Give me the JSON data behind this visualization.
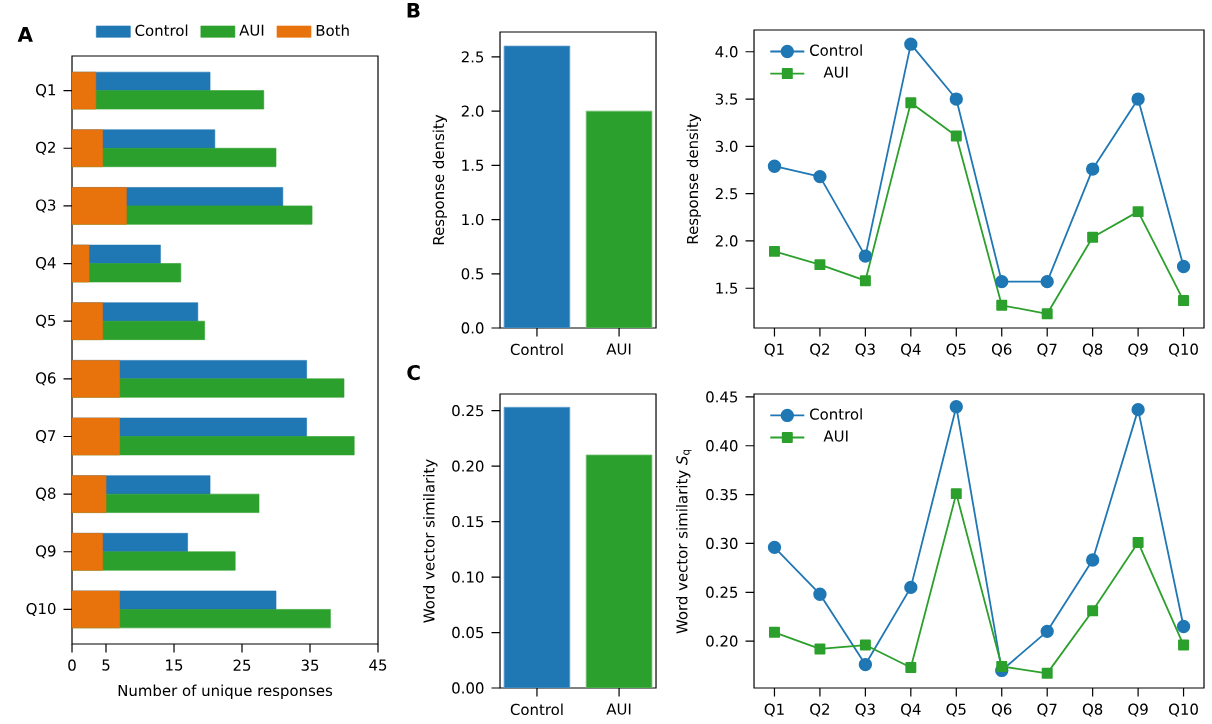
{
  "chart_data": [
    {
      "type": "bar",
      "orientation": "horizontal",
      "title": "A",
      "xlabel": "Number of unique responses",
      "categories": [
        "Q1",
        "Q2",
        "Q3",
        "Q4",
        "Q5",
        "Q6",
        "Q7",
        "Q8",
        "Q9",
        "Q10"
      ],
      "xlim": [
        0,
        45
      ],
      "xticks": [
        0,
        5,
        15,
        25,
        35,
        45
      ],
      "legend": "top",
      "series": [
        {
          "name": "Control",
          "color": "#1f77b4",
          "values": [
            20.3,
            21,
            31,
            13,
            18.5,
            34.5,
            34.5,
            20.3,
            17,
            30
          ]
        },
        {
          "name": "AUI",
          "color": "#2ca02c",
          "values": [
            28.2,
            30,
            35.3,
            16,
            19.5,
            40,
            41.5,
            27.5,
            24,
            38
          ]
        },
        {
          "name": "Both",
          "color": "#e8720c",
          "values": [
            3.5,
            4.5,
            8,
            2.5,
            4.5,
            7,
            7,
            5,
            4.5,
            7
          ]
        }
      ]
    },
    {
      "type": "bar",
      "title": "B",
      "ylabel": "Response density",
      "categories": [
        "Control",
        "AUI"
      ],
      "values": [
        2.6,
        2.0
      ],
      "colors": [
        "#1f77b4",
        "#2ca02c"
      ],
      "ylim": [
        0,
        2.73
      ],
      "yticks": [
        {
          "value": 0,
          "label": "0.0"
        },
        0.5,
        {
          "value": 1,
          "label": "1.0"
        },
        1.5,
        {
          "value": 2,
          "label": "2.0"
        },
        2.5
      ]
    },
    {
      "type": "line",
      "ylabel": "Response density",
      "categories": [
        "Q1",
        "Q2",
        "Q3",
        "Q4",
        "Q5",
        "Q6",
        "Q7",
        "Q8",
        "Q9",
        "Q10"
      ],
      "ylim": [
        1.08,
        4.23
      ],
      "yticks": [
        1.5,
        {
          "value": 2,
          "label": "2.0"
        },
        2.5,
        {
          "value": 3,
          "label": "3.0"
        },
        3.5,
        {
          "value": 4,
          "label": "4.0"
        }
      ],
      "legend": "top left",
      "series": [
        {
          "name": "Control",
          "color": "#1f77b4",
          "marker": "circle",
          "values": [
            2.79,
            2.68,
            1.84,
            4.08,
            3.5,
            1.57,
            1.57,
            2.76,
            3.5,
            1.73
          ]
        },
        {
          "name": "AUI",
          "color": "#2ca02c",
          "marker": "square",
          "values": [
            1.89,
            1.75,
            1.58,
            3.46,
            3.11,
            1.32,
            1.23,
            2.04,
            2.31,
            1.37
          ]
        }
      ]
    },
    {
      "type": "bar",
      "title": "C",
      "ylabel": "Word vector similarity",
      "categories": [
        "Control",
        "AUI"
      ],
      "values": [
        0.253,
        0.21
      ],
      "colors": [
        "#1f77b4",
        "#2ca02c"
      ],
      "ylim": [
        0,
        0.265
      ],
      "yticks": [
        {
          "value": 0,
          "label": "0.00"
        },
        0.05,
        {
          "value": 0.1,
          "label": "0.10"
        },
        0.15,
        {
          "value": 0.2,
          "label": "0.20"
        },
        0.25
      ]
    },
    {
      "type": "line",
      "ylabel": "Word vector similarity *S*$_{q}$",
      "categories": [
        "Q1",
        "Q2",
        "Q3",
        "Q4",
        "Q5",
        "Q6",
        "Q7",
        "Q8",
        "Q9",
        "Q10"
      ],
      "ylim": [
        0.152,
        0.453
      ],
      "yticks": [
        {
          "value": 0.2,
          "label": "0.20"
        },
        0.25,
        {
          "value": 0.3,
          "label": "0.30"
        },
        0.35,
        {
          "value": 0.4,
          "label": "0.40"
        },
        0.45
      ],
      "legend": "top left",
      "series": [
        {
          "name": "Control",
          "color": "#1f77b4",
          "marker": "circle",
          "values": [
            0.296,
            0.248,
            0.176,
            0.255,
            0.44,
            0.17,
            0.21,
            0.283,
            0.437,
            0.215
          ]
        },
        {
          "name": "AUI",
          "color": "#2ca02c",
          "marker": "square",
          "values": [
            0.209,
            0.192,
            0.196,
            0.173,
            0.351,
            0.174,
            0.167,
            0.231,
            0.301,
            0.196
          ]
        }
      ]
    }
  ]
}
